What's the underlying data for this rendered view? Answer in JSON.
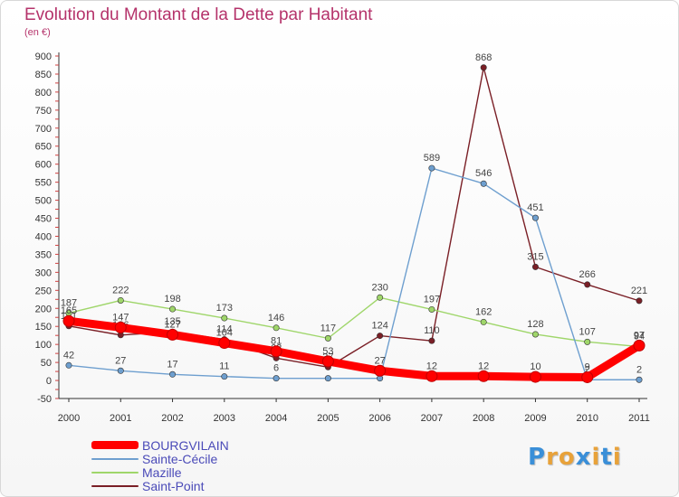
{
  "header": {
    "title": "Evolution du Montant de la Dette par Habitant",
    "subtitle": "(en €)"
  },
  "logo": {
    "letters": [
      "P",
      "r",
      "o",
      "x",
      "i",
      "t",
      "i"
    ],
    "colors": [
      "#3a8fd8",
      "#e8a23a",
      "#e8a23a",
      "#3a8fd8",
      "#e8a23a",
      "#3a8fd8",
      "#e8a23a"
    ]
  },
  "chart_data": {
    "type": "line",
    "title": "Evolution du Montant de la Dette par Habitant",
    "subtitle": "(en €)",
    "x": [
      "2000",
      "2001",
      "2002",
      "2003",
      "2004",
      "2005",
      "2006",
      "2007",
      "2008",
      "2009",
      "2010",
      "2011"
    ],
    "ylim": [
      -50,
      900
    ],
    "yticks": [
      -50,
      0,
      50,
      100,
      150,
      200,
      250,
      300,
      350,
      400,
      450,
      500,
      550,
      600,
      650,
      700,
      750,
      800,
      850,
      900
    ],
    "grid": false,
    "legend_position": "bottom-left",
    "series": [
      {
        "name": "Saint-Point",
        "color": "#7a1f26",
        "values": [
          151,
          126,
          135,
          114,
          62,
          37,
          124,
          110,
          868,
          315,
          266,
          221
        ],
        "labels": [
          "151",
          "126",
          "135",
          "114",
          "62",
          "37",
          "124",
          "110",
          "868",
          "315",
          "266",
          "221"
        ]
      },
      {
        "name": "Mazille",
        "color": "#9fd66a",
        "values": [
          187,
          222,
          198,
          173,
          146,
          117,
          230,
          197,
          162,
          128,
          107,
          94
        ],
        "labels": [
          "187",
          "222",
          "198",
          "173",
          "146",
          "117",
          "230",
          "197",
          "162",
          "128",
          "107",
          "94"
        ]
      },
      {
        "name": "Sainte-Cécile",
        "color": "#6e9fcf",
        "values": [
          42,
          27,
          17,
          11,
          6,
          6,
          6,
          589,
          546,
          451,
          2,
          2
        ],
        "labels": [
          "42",
          "27",
          "17",
          "11",
          "6",
          "",
          "",
          "589",
          "546",
          "451",
          "2",
          "2"
        ]
      },
      {
        "name": "BOURGVILAIN",
        "color": "#ff0000",
        "values": [
          165,
          147,
          127,
          104,
          81,
          53,
          27,
          12,
          12,
          10,
          9,
          97
        ],
        "labels": [
          "165",
          "147",
          "127",
          "104",
          "81",
          "53",
          "27",
          "12",
          "12",
          "10",
          "9",
          "97"
        ]
      }
    ]
  }
}
